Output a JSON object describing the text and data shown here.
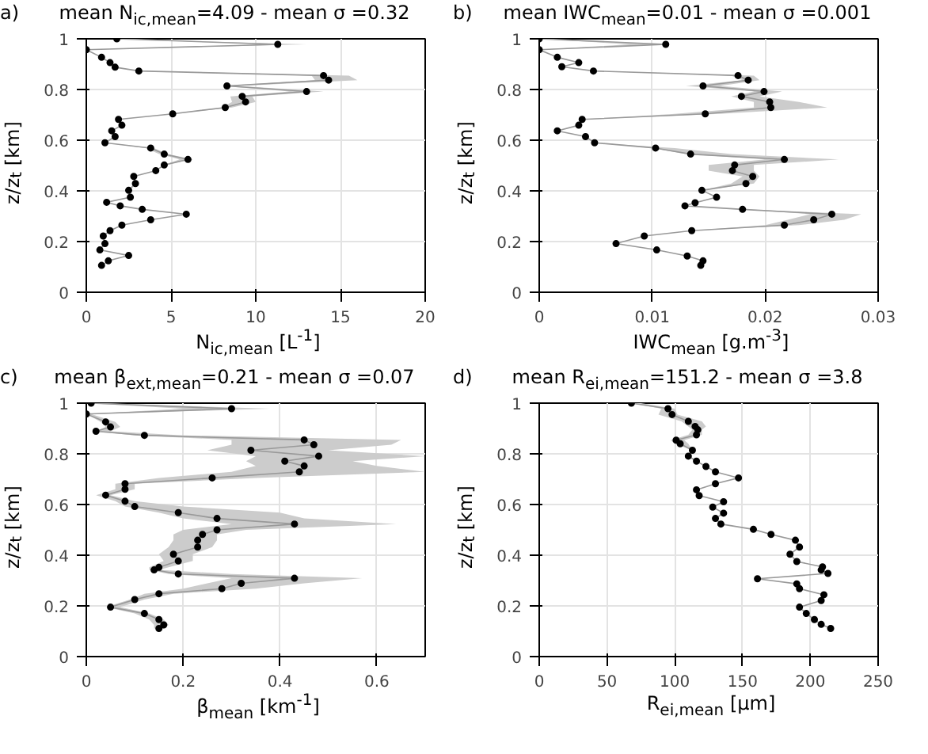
{
  "chart_data": [
    {
      "type": "line",
      "orientation": "horizontal",
      "title": "mean N$_{ic,mean}$=4.09 - mean σ =0.32",
      "annotations": [
        "a)"
      ],
      "xlabel": "N$_{ic,mean}$ [L$^{-1}$]",
      "ylabel": "z/z$_{t}$ [km]",
      "xlim": [
        0,
        20
      ],
      "xticks": [
        0,
        5,
        10,
        15,
        20
      ],
      "ylim": [
        0,
        1
      ],
      "yticks": [
        0,
        0.2,
        0.4,
        0.6,
        0.8,
        1
      ],
      "grid": true,
      "marker": "circle",
      "x": [
        1.0,
        0.978,
        0.957,
        0.927,
        0.906,
        0.888,
        0.873,
        0.855,
        0.837,
        0.814,
        0.792,
        0.773,
        0.751,
        0.729,
        0.704,
        0.682,
        0.659,
        0.637,
        0.614,
        0.59,
        0.569,
        0.545,
        0.524,
        0.502,
        0.48,
        0.457,
        0.429,
        0.402,
        0.375,
        0.355,
        0.341,
        0.327,
        0.308,
        0.286,
        0.265,
        0.243,
        0.222,
        0.192,
        0.167,
        0.145,
        0.124,
        0.106
      ],
      "series": [
        {
          "color": "#000000",
          "values": [
            1.8,
            11.3,
            0,
            0.9,
            1.4,
            1.7,
            3.1,
            14.0,
            14.3,
            8.3,
            13.0,
            9.2,
            9.4,
            8.2,
            5.1,
            1.9,
            2.1,
            1.5,
            1.7,
            1.1,
            3.8,
            4.6,
            6.0,
            4.6,
            4.1,
            2.8,
            2.9,
            2.5,
            2.6,
            1.2,
            2.0,
            3.3,
            5.9,
            3.8,
            2.1,
            1.4,
            1.0,
            1.1,
            0.8,
            2.5,
            1.3,
            0.9
          ],
          "lower": [
            1.8,
            11.0,
            0,
            0.9,
            1.4,
            1.7,
            3.1,
            13.3,
            13.5,
            8.0,
            12.0,
            8.5,
            8.6,
            8.0,
            5.1,
            1.9,
            2.1,
            1.5,
            1.7,
            1.1,
            3.5,
            4.3,
            5.5,
            4.6,
            4.1,
            2.8,
            2.9,
            2.5,
            2.6,
            1.2,
            2.0,
            3.3,
            5.9,
            3.8,
            2.1,
            1.4,
            1.0,
            1.1,
            0.8,
            2.5,
            1.3,
            0.9
          ],
          "upper": [
            1.8,
            13.0,
            0,
            0.9,
            1.4,
            1.7,
            3.1,
            15.5,
            16.0,
            9.0,
            14.0,
            9.8,
            10.0,
            8.6,
            5.1,
            1.9,
            2.1,
            1.5,
            1.7,
            1.1,
            4.0,
            4.8,
            6.3,
            4.6,
            4.1,
            2.8,
            2.9,
            2.5,
            2.6,
            1.2,
            2.0,
            3.3,
            5.9,
            3.8,
            2.1,
            1.4,
            1.0,
            1.1,
            0.8,
            2.5,
            1.3,
            0.9
          ]
        }
      ]
    },
    {
      "type": "line",
      "orientation": "horizontal",
      "title": "mean IWC$_{mean}$=0.01 - mean σ =0.001",
      "annotations": [
        "b)"
      ],
      "xlabel": "IWC$_{mean}$ [g.m$^{-3}$]",
      "ylabel": "z/z$_{t}$ [km]",
      "xlim": [
        0,
        0.03
      ],
      "xticks": [
        0,
        0.01,
        0.02,
        0.03
      ],
      "ylim": [
        0,
        1
      ],
      "yticks": [
        0,
        0.2,
        0.4,
        0.6,
        0.8,
        1
      ],
      "grid": true,
      "marker": "circle",
      "x": [
        1.0,
        0.978,
        0.957,
        0.927,
        0.906,
        0.89,
        0.873,
        0.855,
        0.837,
        0.814,
        0.792,
        0.773,
        0.751,
        0.729,
        0.704,
        0.682,
        0.659,
        0.637,
        0.614,
        0.59,
        0.569,
        0.545,
        0.524,
        0.502,
        0.48,
        0.457,
        0.429,
        0.402,
        0.375,
        0.353,
        0.341,
        0.327,
        0.308,
        0.286,
        0.265,
        0.243,
        0.222,
        0.192,
        0.167,
        0.143,
        0.124,
        0.106
      ],
      "series": [
        {
          "color": "#000000",
          "values": [
            0,
            0.0112,
            0,
            0.0016,
            0.0035,
            0.002,
            0.0048,
            0.0176,
            0.0185,
            0.0145,
            0.0199,
            0.0179,
            0.0204,
            0.0205,
            0.0147,
            0.0038,
            0.0035,
            0.0016,
            0.0041,
            0.0049,
            0.0103,
            0.0134,
            0.0217,
            0.0173,
            0.0171,
            0.0189,
            0.0183,
            0.0144,
            0.0157,
            0.0138,
            0.0129,
            0.018,
            0.0259,
            0.0243,
            0.0217,
            0.0135,
            0.0093,
            0.0068,
            0.0104,
            0.0131,
            0.0145,
            0.0143
          ],
          "lower": [
            0,
            0.008,
            0,
            0.0016,
            0.0035,
            0.002,
            0.0048,
            0.017,
            0.018,
            0.013,
            0.019,
            0.017,
            0.019,
            0.019,
            0.012,
            0.0038,
            0.0035,
            0.0016,
            0.0041,
            0.0049,
            0.01,
            0.013,
            0.02,
            0.015,
            0.015,
            0.018,
            0.017,
            0.0144,
            0.0157,
            0.0138,
            0.0129,
            0.018,
            0.024,
            0.022,
            0.02,
            0.0135,
            0.0093,
            0.0068,
            0.0104,
            0.0131,
            0.0145,
            0.0143
          ],
          "upper": [
            0,
            0.0115,
            0,
            0.0016,
            0.0035,
            0.002,
            0.0048,
            0.019,
            0.0195,
            0.016,
            0.0215,
            0.0195,
            0.023,
            0.0255,
            0.016,
            0.0038,
            0.0035,
            0.0016,
            0.0041,
            0.0049,
            0.012,
            0.017,
            0.0265,
            0.019,
            0.019,
            0.0195,
            0.019,
            0.0144,
            0.0157,
            0.0138,
            0.0129,
            0.018,
            0.0285,
            0.027,
            0.023,
            0.0135,
            0.0093,
            0.0068,
            0.0104,
            0.0131,
            0.0145,
            0.0143
          ]
        }
      ]
    },
    {
      "type": "line",
      "orientation": "horizontal",
      "title": "mean β$_{ext,mean}$=0.21 - mean σ =0.07",
      "annotations": [
        "c)"
      ],
      "xlabel": "β$_{mean}$ [km$^{-1}$]",
      "ylabel": "z/z$_{t}$ [km]",
      "xlim": [
        0,
        0.7
      ],
      "xticks": [
        0,
        0.2,
        0.4,
        0.6
      ],
      "ylim": [
        0,
        1
      ],
      "yticks": [
        0,
        0.2,
        0.4,
        0.6,
        0.8,
        1
      ],
      "grid": true,
      "marker": "circle",
      "x": [
        1.0,
        0.978,
        0.957,
        0.926,
        0.906,
        0.889,
        0.873,
        0.855,
        0.836,
        0.814,
        0.791,
        0.771,
        0.752,
        0.729,
        0.705,
        0.682,
        0.66,
        0.637,
        0.613,
        0.592,
        0.568,
        0.545,
        0.523,
        0.5,
        0.482,
        0.459,
        0.432,
        0.404,
        0.377,
        0.352,
        0.342,
        0.326,
        0.309,
        0.289,
        0.268,
        0.248,
        0.225,
        0.195,
        0.17,
        0.146,
        0.125,
        0.111
      ],
      "series": [
        {
          "color": "#000000",
          "values": [
            0.01,
            0.3,
            0,
            0.04,
            0.05,
            0.02,
            0.12,
            0.45,
            0.47,
            0.34,
            0.48,
            0.41,
            0.45,
            0.44,
            0.26,
            0.08,
            0.08,
            0.04,
            0.08,
            0.1,
            0.19,
            0.27,
            0.43,
            0.27,
            0.24,
            0.23,
            0.23,
            0.18,
            0.19,
            0.15,
            0.14,
            0.19,
            0.43,
            0.32,
            0.28,
            0.15,
            0.1,
            0.05,
            0.12,
            0.15,
            0.16,
            0.15
          ],
          "lower": [
            0,
            0.2,
            0,
            0.03,
            0.04,
            0.02,
            0.1,
            0.3,
            0.3,
            0.25,
            0.35,
            0.33,
            0.35,
            0.3,
            0.15,
            0.06,
            0.06,
            0.02,
            0.06,
            0.08,
            0.15,
            0.2,
            0.3,
            0.2,
            0.18,
            0.18,
            0.17,
            0.15,
            0.16,
            0.13,
            0.13,
            0.17,
            0.3,
            0.25,
            0.2,
            0.12,
            0.09,
            0.04,
            0.1,
            0.13,
            0.14,
            0.14
          ],
          "upper": [
            0.02,
            0.38,
            0.01,
            0.06,
            0.07,
            0.05,
            0.2,
            0.65,
            0.63,
            0.5,
            0.7,
            0.55,
            0.6,
            0.7,
            0.35,
            0.1,
            0.1,
            0.05,
            0.1,
            0.2,
            0.4,
            0.45,
            0.64,
            0.33,
            0.27,
            0.27,
            0.26,
            0.22,
            0.22,
            0.17,
            0.15,
            0.3,
            0.57,
            0.45,
            0.35,
            0.18,
            0.12,
            0.07,
            0.13,
            0.16,
            0.17,
            0.16
          ]
        }
      ]
    },
    {
      "type": "line",
      "orientation": "horizontal",
      "title": "mean R$_{ei,mean}$=151.2 - mean σ =3.8",
      "annotations": [
        "d)"
      ],
      "xlabel": "R$_{ei,mean}$ [µm]",
      "ylabel": "z/z$_{t}$ [km]",
      "xlim": [
        0,
        250
      ],
      "xticks": [
        0,
        50,
        100,
        150,
        200,
        250
      ],
      "ylim": [
        0,
        1
      ],
      "yticks": [
        0,
        0.2,
        0.4,
        0.6,
        0.8,
        1
      ],
      "grid": true,
      "marker": "circle",
      "x": [
        1.0,
        0.978,
        0.955,
        0.928,
        0.908,
        0.895,
        0.875,
        0.854,
        0.84,
        0.814,
        0.791,
        0.771,
        0.75,
        0.729,
        0.705,
        0.682,
        0.658,
        0.635,
        0.611,
        0.59,
        0.566,
        0.545,
        0.523,
        0.502,
        0.482,
        0.459,
        0.432,
        0.404,
        0.375,
        0.354,
        0.342,
        0.328,
        0.307,
        0.287,
        0.268,
        0.244,
        0.221,
        0.195,
        0.17,
        0.146,
        0.127,
        0.111
      ],
      "series": [
        {
          "color": "#000000",
          "values": [
            68,
            95,
            98,
            110,
            115,
            117,
            116,
            101,
            104,
            113,
            110,
            116,
            123,
            130,
            147,
            130,
            116,
            118,
            136,
            128,
            136,
            130,
            134,
            158,
            171,
            189,
            192,
            185,
            190,
            209,
            208,
            213,
            161,
            190,
            192,
            210,
            208,
            192,
            197,
            203,
            208,
            215
          ],
          "lower": [
            68,
            90,
            88,
            105,
            110,
            113,
            110,
            97,
            100,
            113,
            110,
            116,
            123,
            130,
            147,
            130,
            116,
            118,
            136,
            128,
            136,
            130,
            134,
            158,
            171,
            189,
            192,
            185,
            190,
            209,
            208,
            213,
            161,
            190,
            192,
            210,
            208,
            192,
            197,
            203,
            208,
            215
          ],
          "upper": [
            75,
            100,
            102,
            120,
            123,
            120,
            120,
            107,
            110,
            113,
            110,
            116,
            123,
            130,
            147,
            130,
            116,
            118,
            136,
            128,
            136,
            130,
            134,
            158,
            171,
            189,
            192,
            185,
            190,
            209,
            208,
            213,
            161,
            190,
            192,
            210,
            208,
            192,
            197,
            203,
            208,
            215
          ]
        }
      ]
    }
  ]
}
